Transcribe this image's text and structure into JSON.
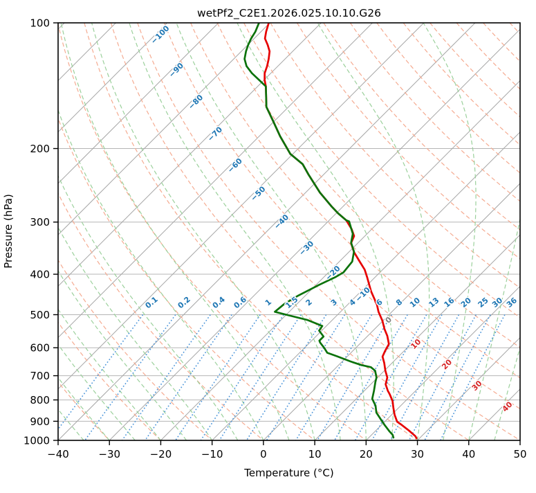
{
  "title": "wetPf2_C2E1.2026.025.10.10.G26",
  "x_axis": {
    "label": "Temperature (°C)",
    "tick_values": [
      -40,
      -30,
      -20,
      -10,
      0,
      10,
      20,
      30,
      40,
      50
    ],
    "range": [
      -40,
      50
    ]
  },
  "y_axis": {
    "label": "Pressure (hPa)",
    "tick_values": [
      100,
      200,
      300,
      400,
      500,
      600,
      700,
      800,
      900,
      1000
    ],
    "range": [
      1000,
      100
    ],
    "scale": "log"
  },
  "chart_data": {
    "type": "line",
    "diagram": "skew-t-log-p",
    "skew_degrees": 45,
    "title": "wetPf2_C2E1.2026.025.10.10.G26",
    "series": [
      {
        "name": "temperature",
        "color": "#e60000",
        "width": 2.7,
        "points": [
          [
            100,
            -80.2
          ],
          [
            105,
            -79.0
          ],
          [
            109,
            -77.9
          ],
          [
            113,
            -76.1
          ],
          [
            117,
            -74.5
          ],
          [
            122,
            -73.2
          ],
          [
            127,
            -72.1
          ],
          [
            132,
            -71.2
          ],
          [
            137,
            -69.9
          ],
          [
            142,
            -68.4
          ],
          [
            159,
            -64.3
          ],
          [
            172,
            -60.2
          ],
          [
            187,
            -55.9
          ],
          [
            206,
            -50.5
          ],
          [
            218,
            -46.1
          ],
          [
            231,
            -42.9
          ],
          [
            255,
            -37.2
          ],
          [
            275,
            -32.3
          ],
          [
            286,
            -29.6
          ],
          [
            297,
            -26.7
          ],
          [
            312,
            -23.9
          ],
          [
            324,
            -22.1
          ],
          [
            337,
            -21.3
          ],
          [
            354,
            -19.0
          ],
          [
            372,
            -16.2
          ],
          [
            390,
            -13.5
          ],
          [
            407,
            -11.5
          ],
          [
            439,
            -8.1
          ],
          [
            473,
            -4.3
          ],
          [
            492,
            -2.6
          ],
          [
            517,
            -0.1
          ],
          [
            541,
            1.9
          ],
          [
            562,
            3.8
          ],
          [
            588,
            5.7
          ],
          [
            611,
            6.3
          ],
          [
            630,
            6.9
          ],
          [
            653,
            8.5
          ],
          [
            681,
            10.2
          ],
          [
            707,
            11.9
          ],
          [
            734,
            12.9
          ],
          [
            761,
            14.6
          ],
          [
            775,
            15.6
          ],
          [
            805,
            17.5
          ],
          [
            836,
            19.0
          ],
          [
            869,
            20.6
          ],
          [
            902,
            22.4
          ],
          [
            919,
            24.0
          ],
          [
            947,
            26.4
          ],
          [
            976,
            28.7
          ],
          [
            988,
            29.4
          ]
        ]
      },
      {
        "name": "dewpoint",
        "color": "#0b720b",
        "width": 2.7,
        "points": [
          [
            100,
            -82.1
          ],
          [
            105,
            -81.1
          ],
          [
            109,
            -80.6
          ],
          [
            113,
            -79.9
          ],
          [
            117,
            -79.1
          ],
          [
            122,
            -77.9
          ],
          [
            127,
            -76.1
          ],
          [
            132,
            -73.7
          ],
          [
            137,
            -71.0
          ],
          [
            142,
            -68.4
          ],
          [
            159,
            -64.3
          ],
          [
            172,
            -60.2
          ],
          [
            187,
            -55.9
          ],
          [
            206,
            -50.5
          ],
          [
            218,
            -46.1
          ],
          [
            231,
            -42.9
          ],
          [
            255,
            -37.2
          ],
          [
            275,
            -32.3
          ],
          [
            286,
            -29.6
          ],
          [
            297,
            -26.7
          ],
          [
            299,
            -25.9
          ],
          [
            320,
            -22.8
          ],
          [
            336,
            -21.4
          ],
          [
            353,
            -19.1
          ],
          [
            373,
            -17.5
          ],
          [
            396,
            -17.1
          ],
          [
            406,
            -17.7
          ],
          [
            424,
            -19.4
          ],
          [
            450,
            -21.4
          ],
          [
            472,
            -22.5
          ],
          [
            492,
            -22.8
          ],
          [
            503,
            -19.0
          ],
          [
            515,
            -14.8
          ],
          [
            532,
            -10.8
          ],
          [
            546,
            -10.5
          ],
          [
            564,
            -8.5
          ],
          [
            577,
            -8.5
          ],
          [
            583,
            -8.0
          ],
          [
            600,
            -6.2
          ],
          [
            617,
            -4.6
          ],
          [
            629,
            -2.0
          ],
          [
            647,
            1.6
          ],
          [
            660,
            4.4
          ],
          [
            668,
            6.7
          ],
          [
            681,
            8.2
          ],
          [
            707,
            9.8
          ],
          [
            726,
            10.5
          ],
          [
            761,
            11.9
          ],
          [
            795,
            13.1
          ],
          [
            826,
            15.1
          ],
          [
            858,
            16.6
          ],
          [
            891,
            18.8
          ],
          [
            920,
            20.7
          ],
          [
            950,
            22.7
          ],
          [
            970,
            24.1
          ],
          [
            985,
            24.8
          ]
        ]
      }
    ],
    "pressure_gridlines": {
      "color": "#b5b5b5",
      "values": [
        100,
        200,
        300,
        400,
        500,
        600,
        700,
        800,
        900,
        1000
      ]
    },
    "isotherms": {
      "color": "#a6a6a6",
      "start": -120,
      "end": 50,
      "step": 10,
      "labels": [
        {
          "value": -100,
          "p": 107,
          "color": "#1f77b4"
        },
        {
          "value": -90,
          "p": 130,
          "color": "#1f77b4"
        },
        {
          "value": -80,
          "p": 155,
          "color": "#1f77b4"
        },
        {
          "value": -70,
          "p": 185,
          "color": "#1f77b4"
        },
        {
          "value": -60,
          "p": 220,
          "color": "#1f77b4"
        },
        {
          "value": -50,
          "p": 257,
          "color": "#1f77b4"
        },
        {
          "value": -40,
          "p": 300,
          "color": "#1f77b4"
        },
        {
          "value": -30,
          "p": 347,
          "color": "#1f77b4"
        },
        {
          "value": -20,
          "p": 398,
          "color": "#1f77b4"
        },
        {
          "value": -10,
          "p": 448,
          "color": "#1f77b4"
        },
        {
          "value": 0,
          "p": 516,
          "color": "#808080"
        },
        {
          "value": 10,
          "p": 589,
          "color": "#d62728"
        },
        {
          "value": 20,
          "p": 659,
          "color": "#d62728"
        },
        {
          "value": 30,
          "p": 741,
          "color": "#d62728"
        },
        {
          "value": 40,
          "p": 832,
          "color": "#d62728"
        }
      ]
    },
    "dry_adiabats": {
      "color": "#f5ab91",
      "theta_start": -30,
      "theta_end": 200,
      "step": 10
    },
    "moist_adiabats": {
      "color": "#9bd09b",
      "t_start": -40,
      "t_end": 45,
      "step": 5
    },
    "mixing_ratio_lines": {
      "color": "#4a94d9",
      "label_color": "#1f77b4",
      "p_top": 500,
      "p_bottom": 1000,
      "label_pressure": 478,
      "values": [
        0.1,
        0.2,
        0.4,
        0.6,
        1,
        1.5,
        2,
        3,
        4,
        6,
        8,
        10,
        13,
        16,
        20,
        25,
        30,
        36
      ]
    }
  }
}
